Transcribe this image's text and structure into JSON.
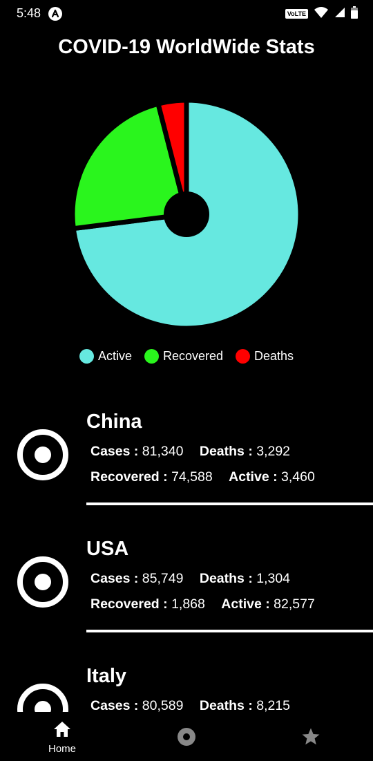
{
  "status_bar": {
    "time": "5:48",
    "network_badge": "VoLTE",
    "icons": [
      "app-notification-icon",
      "wifi-icon",
      "cell-signal-icon",
      "battery-icon"
    ]
  },
  "header": {
    "title": "COVID-19 WorldWide Stats"
  },
  "colors": {
    "active": "#66e8e0",
    "recovered": "#2af51d",
    "deaths": "#ff0000",
    "background": "#000000",
    "text": "#ffffff"
  },
  "chart_data": {
    "type": "pie",
    "categories": [
      "Active",
      "Recovered",
      "Deaths"
    ],
    "values": [
      73,
      23,
      4
    ],
    "legend_position": "bottom"
  },
  "countries": [
    {
      "name": "China",
      "cases_label": "Cases :",
      "cases": "81,340",
      "deaths_label": "Deaths :",
      "deaths": "3,292",
      "recovered_label": "Recovered :",
      "recovered": "74,588",
      "active_label": "Active :",
      "active": "3,460"
    },
    {
      "name": "USA",
      "cases_label": "Cases :",
      "cases": "85,749",
      "deaths_label": "Deaths :",
      "deaths": "1,304",
      "recovered_label": "Recovered :",
      "recovered": "1,868",
      "active_label": "Active :",
      "active": "82,577"
    },
    {
      "name": "Italy",
      "cases_label": "Cases :",
      "cases": "80,589",
      "deaths_label": "Deaths :",
      "deaths": "8,215"
    }
  ],
  "bottom_nav": {
    "home_label": "Home",
    "icons": [
      "home-icon",
      "radio-icon",
      "star-icon"
    ]
  }
}
